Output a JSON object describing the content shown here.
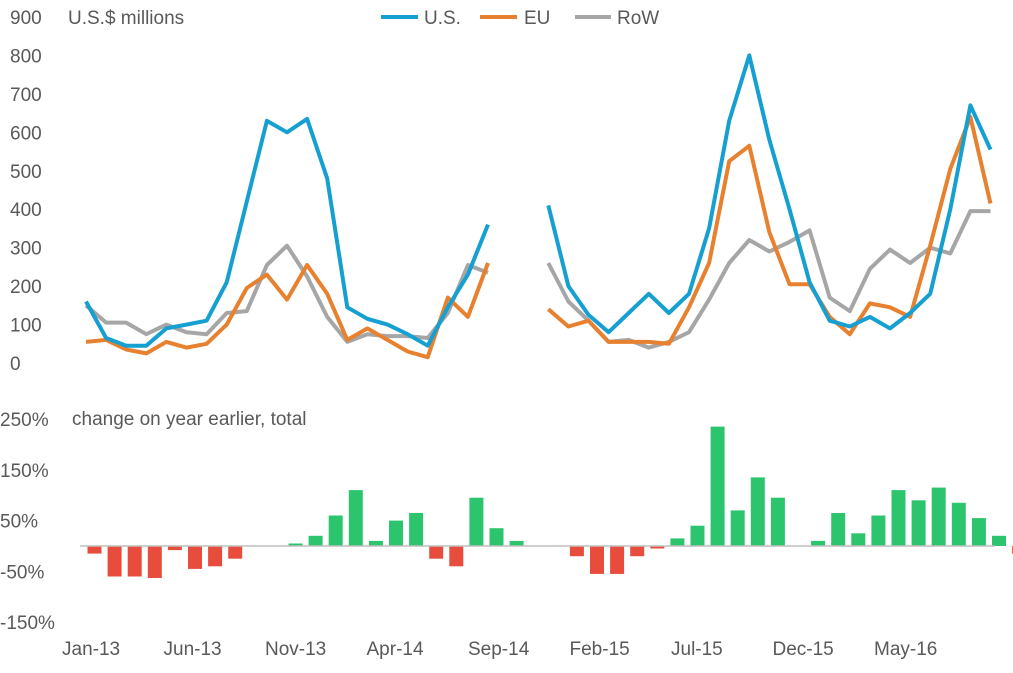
{
  "chart_data": [
    {
      "type": "line",
      "title": "U.S.$ millions",
      "ylim": [
        0,
        900
      ],
      "yticks": [
        0,
        100,
        200,
        300,
        400,
        500,
        600,
        700,
        800,
        900
      ],
      "legend": "top-center",
      "series": [
        {
          "name": "U.S.",
          "color": "#169FD1",
          "values": [
            160,
            65,
            45,
            45,
            90,
            100,
            110,
            210,
            420,
            630,
            600,
            635,
            480,
            145,
            115,
            100,
            75,
            45,
            145,
            230,
            360,
            null,
            null,
            410,
            200,
            125,
            80,
            130,
            180,
            130,
            180,
            350,
            630,
            800,
            580,
            400,
            210,
            110,
            95,
            120,
            90,
            130,
            180,
            400,
            670,
            555
          ]
        },
        {
          "name": "EU",
          "color": "#E8812F",
          "values": [
            55,
            60,
            35,
            25,
            55,
            40,
            50,
            100,
            195,
            230,
            165,
            255,
            180,
            60,
            90,
            60,
            30,
            15,
            170,
            120,
            260,
            null,
            null,
            140,
            95,
            110,
            55,
            55,
            55,
            50,
            145,
            260,
            525,
            565,
            340,
            205,
            205,
            120,
            75,
            155,
            145,
            120,
            305,
            505,
            640,
            415
          ]
        },
        {
          "name": "RoW",
          "color": "#A6A6A6",
          "values": [
            150,
            105,
            105,
            75,
            100,
            80,
            75,
            130,
            135,
            255,
            305,
            225,
            120,
            55,
            75,
            70,
            70,
            65,
            130,
            255,
            235,
            null,
            null,
            260,
            160,
            110,
            55,
            60,
            40,
            55,
            80,
            165,
            260,
            320,
            290,
            315,
            345,
            170,
            135,
            245,
            295,
            260,
            300,
            285,
            395,
            395
          ]
        }
      ]
    },
    {
      "type": "bar",
      "title": "change on year earlier, total",
      "ylim": [
        -150,
        250
      ],
      "yticks": [
        "250%",
        "150%",
        "50%",
        "-50%",
        "-150%"
      ],
      "ytick_values": [
        250,
        150,
        50,
        -50,
        -150
      ],
      "positive_color": "#2DC46E",
      "negative_color": "#E84C3D",
      "values": [
        -15,
        -60,
        -60,
        -63,
        -8,
        -45,
        -40,
        -25,
        null,
        null,
        5,
        20,
        60,
        110,
        10,
        50,
        65,
        -25,
        -40,
        95,
        35,
        10,
        null,
        null,
        -20,
        -55,
        -55,
        -20,
        -5,
        15,
        40,
        235,
        70,
        135,
        95,
        null,
        10,
        65,
        25,
        60,
        110,
        90,
        115,
        85,
        55,
        20,
        -15
      ]
    }
  ],
  "x_axis": {
    "categories": [
      "Jan-13",
      "Jun-13",
      "Nov-13",
      "Apr-14",
      "Sep-14",
      "Feb-15",
      "Jul-15",
      "Dec-15",
      "May-16"
    ]
  }
}
